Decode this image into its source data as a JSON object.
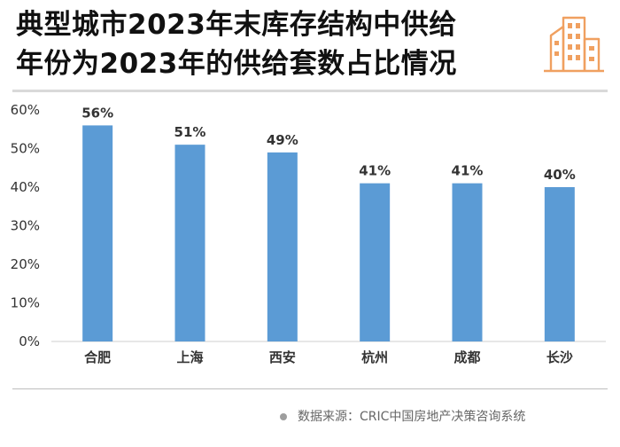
{
  "chart_data": {
    "type": "bar",
    "title_lines": [
      "典型城市2023年末库存结构中供给",
      "年份为2023年的供给套数占比情况"
    ],
    "categories": [
      "合肥",
      "上海",
      "西安",
      "杭州",
      "成都",
      "长沙"
    ],
    "values": [
      56,
      51,
      49,
      41,
      41,
      40
    ],
    "data_labels": [
      "56%",
      "51%",
      "49%",
      "41%",
      "41%",
      "40%"
    ],
    "y_ticks": [
      "0%",
      "10%",
      "20%",
      "30%",
      "40%",
      "50%",
      "60%"
    ],
    "ylim": [
      0,
      60
    ],
    "grid": false,
    "bar_color": "#5b9bd5"
  },
  "source": {
    "label": "数据来源：",
    "value": "CRIC中国房地产决策咨询系统"
  },
  "logo": {
    "icon": "city-buildings-icon",
    "color": "#f0a060"
  }
}
